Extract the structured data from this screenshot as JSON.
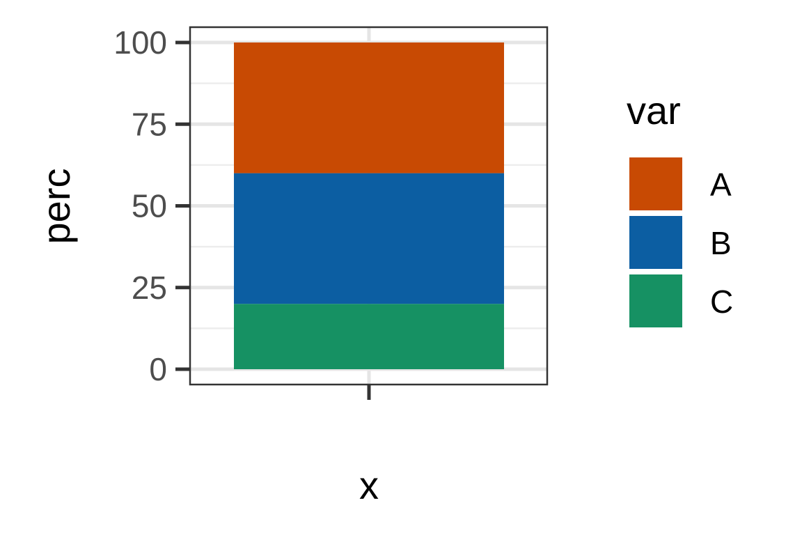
{
  "chart_data": {
    "type": "bar",
    "stacked": true,
    "categories": [
      ""
    ],
    "series": [
      {
        "name": "A",
        "values": [
          40
        ],
        "color": "#C84A03"
      },
      {
        "name": "B",
        "values": [
          40
        ],
        "color": "#0C5EA2"
      },
      {
        "name": "C",
        "values": [
          20
        ],
        "color": "#169163"
      }
    ],
    "stack_order_top_to_bottom": [
      "A",
      "B",
      "C"
    ],
    "xlabel": "x",
    "ylabel": "perc",
    "ylim": [
      0,
      100
    ],
    "yticks": [
      "0",
      "25",
      "50",
      "75",
      "100"
    ],
    "grid": true,
    "legend": {
      "title": "var",
      "position": "right"
    }
  }
}
